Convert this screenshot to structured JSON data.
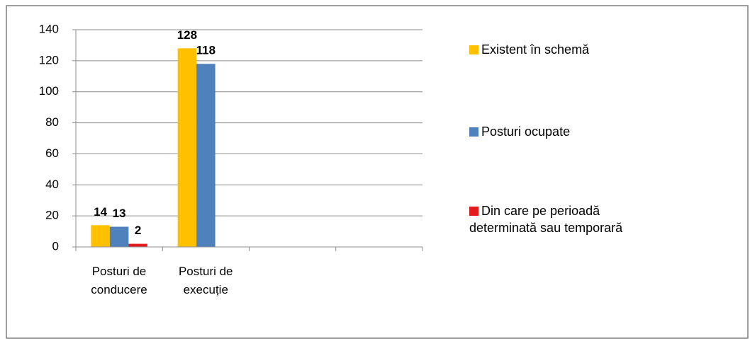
{
  "chart_data": {
    "type": "bar",
    "categories": [
      "Posturi de conducere",
      "Posturi de execuție",
      null,
      null
    ],
    "series": [
      {
        "name": "Existent în schemă",
        "color": "#ffc000",
        "values": [
          14,
          128,
          null,
          null
        ]
      },
      {
        "name": "Posturi ocupate",
        "color": "#4f81bd",
        "values": [
          13,
          118,
          null,
          null
        ]
      },
      {
        "name": "Din care pe perioadă determinată sau temporară",
        "color": "#e41a1c",
        "values": [
          2,
          null,
          null,
          null
        ]
      }
    ],
    "ylim": [
      0,
      140
    ],
    "yticks": [
      0,
      20,
      40,
      60,
      80,
      100,
      120,
      140
    ],
    "grid": true,
    "legend": "right"
  }
}
